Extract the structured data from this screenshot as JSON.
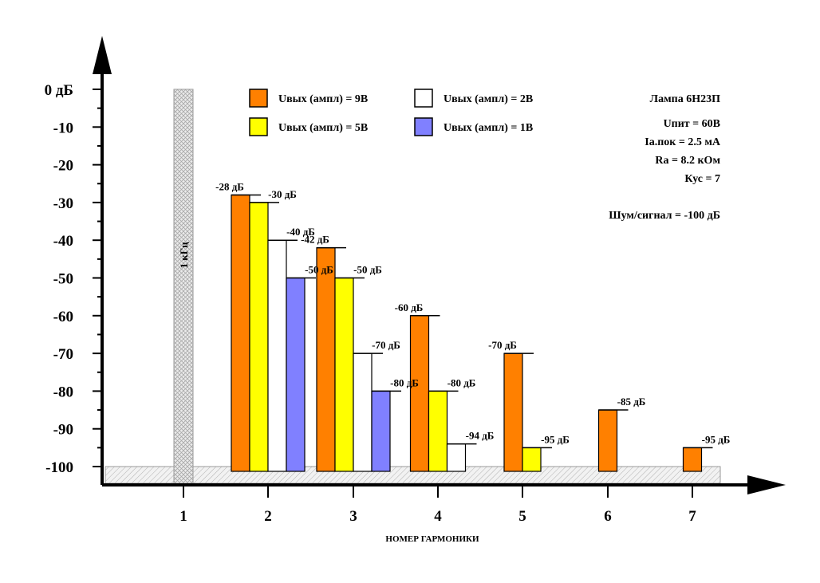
{
  "chart_data": {
    "type": "bar",
    "title": "",
    "xlabel": "НОМЕР ГАРМОНИКИ",
    "ylabel": "",
    "ylim": [
      -100,
      0
    ],
    "y_ticks": [
      "0 дБ",
      "-10",
      "-20",
      "-30",
      "-40",
      "-50",
      "-60",
      "-70",
      "-80",
      "-90",
      "-100"
    ],
    "y_tick_values": [
      0,
      -10,
      -20,
      -30,
      -40,
      -50,
      -60,
      -70,
      -80,
      -90,
      -100
    ],
    "x_ticks": [
      "1",
      "2",
      "3",
      "4",
      "5",
      "6",
      "7"
    ],
    "fundamental": {
      "harmonic": 1,
      "value": 0,
      "label": "1 кГц",
      "color": "#d9d9d9"
    },
    "noise_floor": {
      "value": -100
    },
    "series": [
      {
        "name": "Uвых (ампл) = 9В",
        "color": "#ff8000",
        "points": [
          {
            "harmonic": 2,
            "value": -28,
            "label": "-28 дБ"
          },
          {
            "harmonic": 3,
            "value": -42,
            "label": "-42 дБ"
          },
          {
            "harmonic": 4,
            "value": -60,
            "label": "-60 дБ"
          },
          {
            "harmonic": 5,
            "value": -70,
            "label": "-70 дБ"
          },
          {
            "harmonic": 6,
            "value": -85,
            "label": "-85 дБ"
          },
          {
            "harmonic": 7,
            "value": -95,
            "label": "-95 дБ"
          }
        ]
      },
      {
        "name": "Uвых (ампл) = 5В",
        "color": "#ffff00",
        "points": [
          {
            "harmonic": 2,
            "value": -30,
            "label": "-30 дБ"
          },
          {
            "harmonic": 3,
            "value": -50,
            "label": "-50 дБ"
          },
          {
            "harmonic": 4,
            "value": -80,
            "label": "-80 дБ"
          },
          {
            "harmonic": 5,
            "value": -95,
            "label": "-95 дБ"
          }
        ]
      },
      {
        "name": "Uвых (ампл) = 2В",
        "color": "#ffffff",
        "points": [
          {
            "harmonic": 2,
            "value": -40,
            "label": "-40 дБ"
          },
          {
            "harmonic": 3,
            "value": -70,
            "label": "-70 дБ"
          },
          {
            "harmonic": 4,
            "value": -94,
            "label": "-94 дБ"
          }
        ]
      },
      {
        "name": "Uвых (ампл) = 1В",
        "color": "#8080ff",
        "points": [
          {
            "harmonic": 2,
            "value": -50,
            "label": "-50 дБ"
          },
          {
            "harmonic": 3,
            "value": -80,
            "label": "-80 дБ"
          }
        ]
      }
    ],
    "legend": [
      {
        "label": "Uвых (ампл) = 9В",
        "color": "#ff8000"
      },
      {
        "label": "Uвых (ампл) = 2В",
        "color": "#ffffff"
      },
      {
        "label": "Uвых (ампл) = 5В",
        "color": "#ffff00"
      },
      {
        "label": "Uвых (ампл) = 1В",
        "color": "#8080ff"
      }
    ],
    "annotations": [
      "Лампа 6Н23П",
      "Uпит = 60В",
      "Iа.пок = 2.5 мА",
      "Ra = 8.2 кОм",
      "Кус = 7",
      "Шум/сигнал = -100 дБ"
    ]
  }
}
